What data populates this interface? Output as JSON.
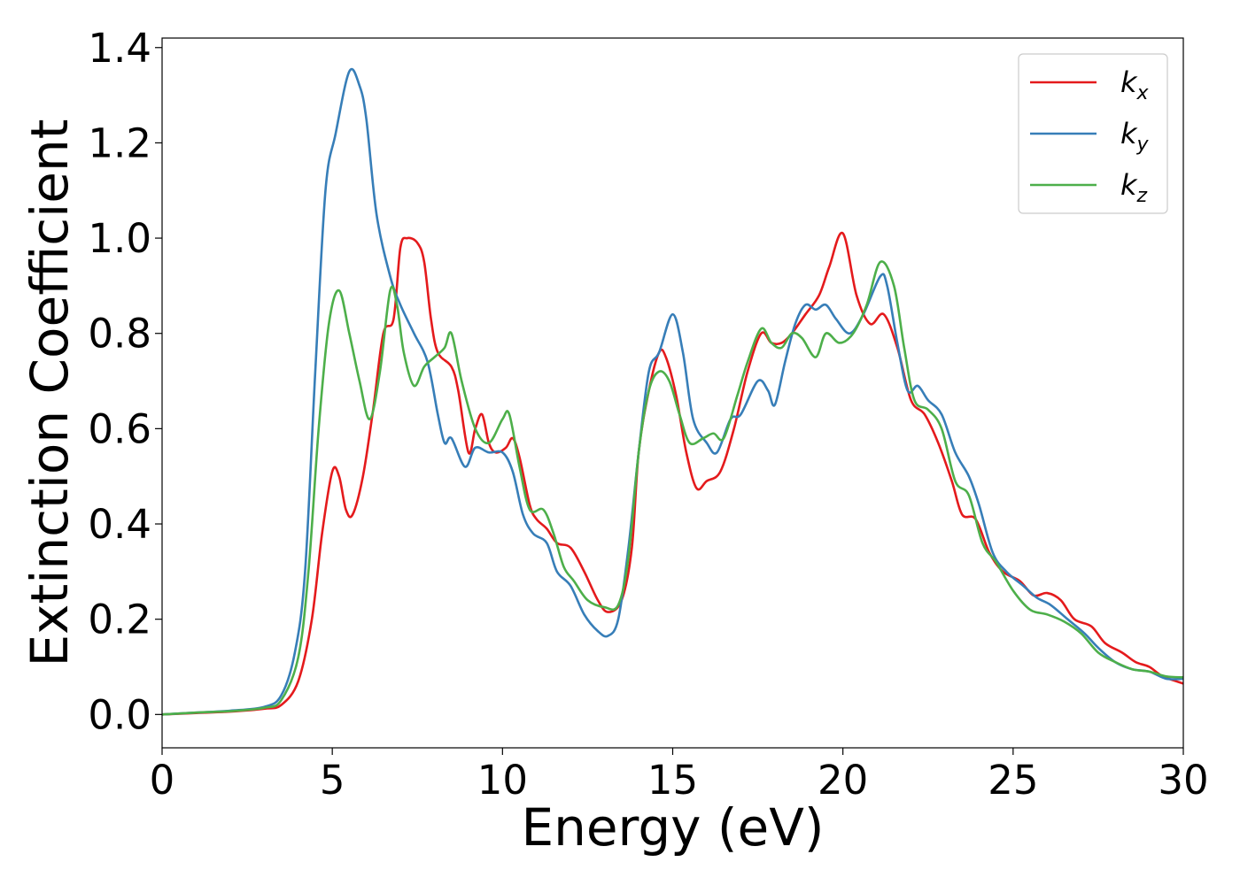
{
  "chart_data": {
    "type": "line",
    "title": "",
    "xlabel": "Energy (eV)",
    "ylabel": "Extinction Coefficient",
    "xlim": [
      0,
      30
    ],
    "ylim": [
      -0.07,
      1.42
    ],
    "xticks": [
      0,
      5,
      10,
      15,
      20,
      25,
      30
    ],
    "xtick_labels": [
      "0",
      "5",
      "10",
      "15",
      "20",
      "25",
      "30"
    ],
    "yticks": [
      0.0,
      0.2,
      0.4,
      0.6,
      0.8,
      1.0,
      1.2,
      1.4
    ],
    "ytick_labels": [
      "0.0",
      "0.2",
      "0.4",
      "0.6",
      "0.8",
      "1.0",
      "1.2",
      "1.4"
    ],
    "grid": false,
    "legend_position": "top-right",
    "series": [
      {
        "name": "k_x",
        "label_base": "k",
        "label_sub": "x",
        "color": "#e41a1c",
        "points": [
          [
            0,
            0
          ],
          [
            1,
            0.003
          ],
          [
            2,
            0.006
          ],
          [
            3,
            0.012
          ],
          [
            3.5,
            0.02
          ],
          [
            4,
            0.07
          ],
          [
            4.4,
            0.2
          ],
          [
            4.7,
            0.38
          ],
          [
            5,
            0.51
          ],
          [
            5.2,
            0.5
          ],
          [
            5.4,
            0.43
          ],
          [
            5.6,
            0.42
          ],
          [
            5.9,
            0.5
          ],
          [
            6.2,
            0.64
          ],
          [
            6.5,
            0.8
          ],
          [
            6.8,
            0.83
          ],
          [
            7.0,
            0.98
          ],
          [
            7.2,
            1.0
          ],
          [
            7.5,
            0.99
          ],
          [
            7.7,
            0.95
          ],
          [
            7.9,
            0.83
          ],
          [
            8.1,
            0.76
          ],
          [
            8.5,
            0.73
          ],
          [
            8.7,
            0.68
          ],
          [
            9.0,
            0.55
          ],
          [
            9.2,
            0.6
          ],
          [
            9.4,
            0.63
          ],
          [
            9.6,
            0.57
          ],
          [
            9.8,
            0.55
          ],
          [
            10.1,
            0.56
          ],
          [
            10.3,
            0.58
          ],
          [
            10.5,
            0.54
          ],
          [
            10.8,
            0.44
          ],
          [
            11.0,
            0.41
          ],
          [
            11.3,
            0.39
          ],
          [
            11.6,
            0.36
          ],
          [
            12.0,
            0.35
          ],
          [
            12.4,
            0.3
          ],
          [
            12.8,
            0.24
          ],
          [
            13.1,
            0.215
          ],
          [
            13.5,
            0.24
          ],
          [
            13.8,
            0.35
          ],
          [
            14.0,
            0.55
          ],
          [
            14.3,
            0.68
          ],
          [
            14.6,
            0.76
          ],
          [
            14.8,
            0.75
          ],
          [
            15.1,
            0.67
          ],
          [
            15.4,
            0.55
          ],
          [
            15.7,
            0.475
          ],
          [
            16.0,
            0.49
          ],
          [
            16.4,
            0.51
          ],
          [
            16.8,
            0.6
          ],
          [
            17.2,
            0.72
          ],
          [
            17.6,
            0.8
          ],
          [
            17.9,
            0.78
          ],
          [
            18.2,
            0.78
          ],
          [
            18.5,
            0.8
          ],
          [
            18.9,
            0.84
          ],
          [
            19.3,
            0.88
          ],
          [
            19.6,
            0.94
          ],
          [
            20.0,
            1.01
          ],
          [
            20.4,
            0.88
          ],
          [
            20.8,
            0.82
          ],
          [
            21.2,
            0.84
          ],
          [
            21.6,
            0.77
          ],
          [
            22.0,
            0.66
          ],
          [
            22.4,
            0.63
          ],
          [
            22.8,
            0.57
          ],
          [
            23.2,
            0.49
          ],
          [
            23.5,
            0.42
          ],
          [
            23.9,
            0.41
          ],
          [
            24.3,
            0.34
          ],
          [
            24.7,
            0.3
          ],
          [
            25.2,
            0.28
          ],
          [
            25.6,
            0.25
          ],
          [
            26.0,
            0.255
          ],
          [
            26.4,
            0.24
          ],
          [
            26.8,
            0.2
          ],
          [
            27.3,
            0.185
          ],
          [
            27.7,
            0.15
          ],
          [
            28.2,
            0.13
          ],
          [
            28.6,
            0.11
          ],
          [
            29.0,
            0.1
          ],
          [
            29.4,
            0.08
          ],
          [
            30,
            0.065
          ]
        ]
      },
      {
        "name": "k_y",
        "label_base": "k",
        "label_sub": "y",
        "color": "#377eb8",
        "points": [
          [
            0,
            0
          ],
          [
            1,
            0.004
          ],
          [
            2,
            0.008
          ],
          [
            3,
            0.016
          ],
          [
            3.5,
            0.04
          ],
          [
            3.9,
            0.13
          ],
          [
            4.2,
            0.3
          ],
          [
            4.5,
            0.72
          ],
          [
            4.8,
            1.1
          ],
          [
            5.1,
            1.22
          ],
          [
            5.5,
            1.35
          ],
          [
            5.8,
            1.32
          ],
          [
            6.0,
            1.25
          ],
          [
            6.3,
            1.05
          ],
          [
            6.7,
            0.92
          ],
          [
            7.0,
            0.86
          ],
          [
            7.4,
            0.8
          ],
          [
            7.8,
            0.74
          ],
          [
            8.1,
            0.63
          ],
          [
            8.3,
            0.57
          ],
          [
            8.5,
            0.58
          ],
          [
            8.9,
            0.52
          ],
          [
            9.2,
            0.56
          ],
          [
            9.6,
            0.55
          ],
          [
            10.0,
            0.55
          ],
          [
            10.3,
            0.51
          ],
          [
            10.6,
            0.42
          ],
          [
            10.9,
            0.38
          ],
          [
            11.3,
            0.36
          ],
          [
            11.6,
            0.3
          ],
          [
            12.0,
            0.27
          ],
          [
            12.4,
            0.21
          ],
          [
            12.8,
            0.175
          ],
          [
            13.1,
            0.165
          ],
          [
            13.4,
            0.2
          ],
          [
            13.7,
            0.35
          ],
          [
            14.0,
            0.55
          ],
          [
            14.3,
            0.72
          ],
          [
            14.6,
            0.76
          ],
          [
            15.0,
            0.84
          ],
          [
            15.3,
            0.76
          ],
          [
            15.6,
            0.62
          ],
          [
            16.0,
            0.57
          ],
          [
            16.3,
            0.55
          ],
          [
            16.7,
            0.62
          ],
          [
            17.0,
            0.63
          ],
          [
            17.5,
            0.7
          ],
          [
            17.8,
            0.68
          ],
          [
            18.0,
            0.65
          ],
          [
            18.3,
            0.74
          ],
          [
            18.6,
            0.82
          ],
          [
            18.9,
            0.86
          ],
          [
            19.2,
            0.85
          ],
          [
            19.5,
            0.86
          ],
          [
            19.8,
            0.83
          ],
          [
            20.2,
            0.8
          ],
          [
            20.6,
            0.84
          ],
          [
            21.1,
            0.92
          ],
          [
            21.3,
            0.9
          ],
          [
            21.6,
            0.78
          ],
          [
            21.9,
            0.68
          ],
          [
            22.2,
            0.69
          ],
          [
            22.5,
            0.66
          ],
          [
            22.9,
            0.63
          ],
          [
            23.3,
            0.55
          ],
          [
            23.7,
            0.5
          ],
          [
            24.0,
            0.44
          ],
          [
            24.4,
            0.34
          ],
          [
            24.8,
            0.3
          ],
          [
            25.3,
            0.27
          ],
          [
            25.7,
            0.245
          ],
          [
            26.1,
            0.23
          ],
          [
            26.6,
            0.2
          ],
          [
            27.1,
            0.17
          ],
          [
            27.5,
            0.14
          ],
          [
            28.0,
            0.11
          ],
          [
            28.5,
            0.095
          ],
          [
            29.0,
            0.09
          ],
          [
            29.5,
            0.075
          ],
          [
            30,
            0.075
          ]
        ]
      },
      {
        "name": "k_z",
        "label_base": "k",
        "label_sub": "z",
        "color": "#4daf4a",
        "points": [
          [
            0,
            0
          ],
          [
            1,
            0.004
          ],
          [
            2,
            0.007
          ],
          [
            3,
            0.014
          ],
          [
            3.5,
            0.03
          ],
          [
            4.0,
            0.12
          ],
          [
            4.3,
            0.3
          ],
          [
            4.6,
            0.6
          ],
          [
            4.9,
            0.82
          ],
          [
            5.2,
            0.89
          ],
          [
            5.5,
            0.8
          ],
          [
            5.8,
            0.7
          ],
          [
            6.1,
            0.62
          ],
          [
            6.4,
            0.72
          ],
          [
            6.7,
            0.89
          ],
          [
            6.9,
            0.86
          ],
          [
            7.1,
            0.76
          ],
          [
            7.4,
            0.69
          ],
          [
            7.7,
            0.73
          ],
          [
            8.0,
            0.75
          ],
          [
            8.3,
            0.77
          ],
          [
            8.5,
            0.8
          ],
          [
            8.8,
            0.7
          ],
          [
            9.2,
            0.6
          ],
          [
            9.6,
            0.57
          ],
          [
            10.0,
            0.62
          ],
          [
            10.2,
            0.63
          ],
          [
            10.5,
            0.52
          ],
          [
            10.8,
            0.43
          ],
          [
            11.2,
            0.43
          ],
          [
            11.5,
            0.38
          ],
          [
            11.8,
            0.31
          ],
          [
            12.1,
            0.28
          ],
          [
            12.5,
            0.24
          ],
          [
            13.0,
            0.225
          ],
          [
            13.4,
            0.23
          ],
          [
            13.7,
            0.33
          ],
          [
            14.0,
            0.55
          ],
          [
            14.3,
            0.68
          ],
          [
            14.6,
            0.72
          ],
          [
            14.9,
            0.7
          ],
          [
            15.2,
            0.63
          ],
          [
            15.5,
            0.57
          ],
          [
            15.9,
            0.58
          ],
          [
            16.2,
            0.59
          ],
          [
            16.5,
            0.58
          ],
          [
            16.9,
            0.67
          ],
          [
            17.2,
            0.74
          ],
          [
            17.6,
            0.81
          ],
          [
            17.9,
            0.78
          ],
          [
            18.2,
            0.77
          ],
          [
            18.5,
            0.8
          ],
          [
            18.8,
            0.79
          ],
          [
            19.2,
            0.75
          ],
          [
            19.5,
            0.8
          ],
          [
            19.9,
            0.78
          ],
          [
            20.3,
            0.8
          ],
          [
            20.7,
            0.86
          ],
          [
            21.1,
            0.95
          ],
          [
            21.5,
            0.9
          ],
          [
            21.8,
            0.77
          ],
          [
            22.1,
            0.66
          ],
          [
            22.5,
            0.64
          ],
          [
            22.9,
            0.6
          ],
          [
            23.3,
            0.49
          ],
          [
            23.7,
            0.46
          ],
          [
            24.1,
            0.36
          ],
          [
            24.5,
            0.32
          ],
          [
            25.0,
            0.26
          ],
          [
            25.5,
            0.22
          ],
          [
            26.0,
            0.21
          ],
          [
            26.5,
            0.195
          ],
          [
            27.0,
            0.17
          ],
          [
            27.5,
            0.13
          ],
          [
            28.0,
            0.11
          ],
          [
            28.5,
            0.095
          ],
          [
            29.0,
            0.09
          ],
          [
            29.5,
            0.08
          ],
          [
            30,
            0.078
          ]
        ]
      }
    ]
  }
}
